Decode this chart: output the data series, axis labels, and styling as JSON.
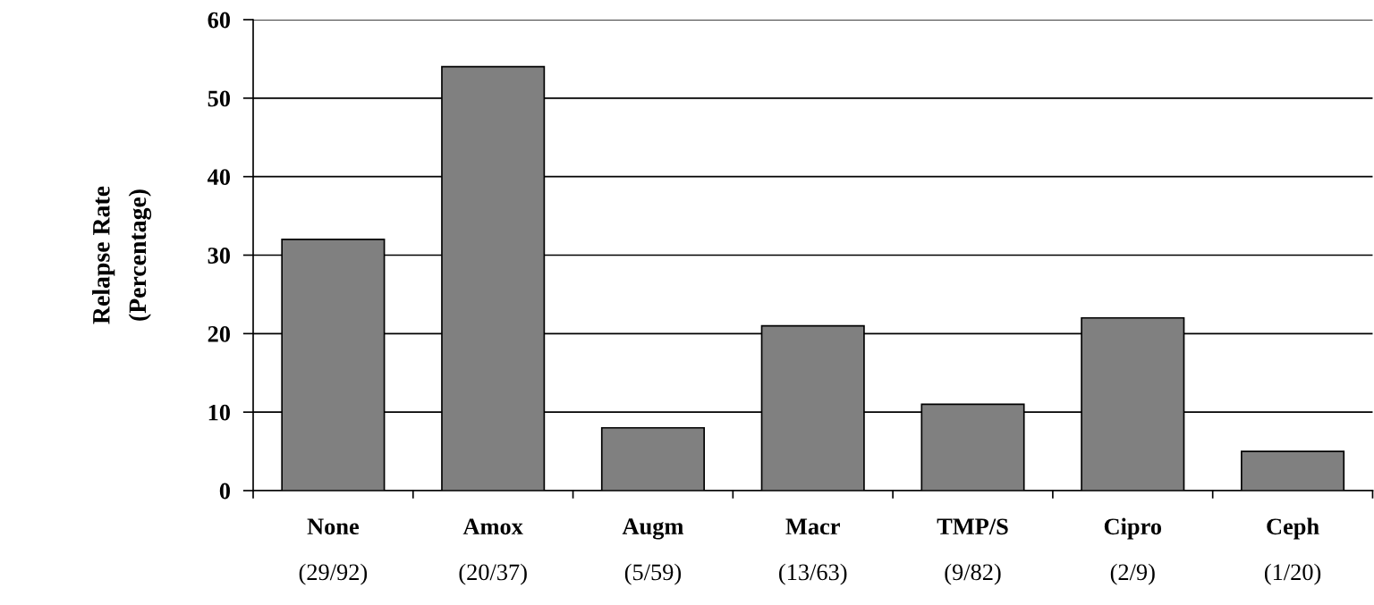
{
  "chart_data": {
    "type": "bar",
    "ylabel": "Relapse Rate\n(Percentage)",
    "categories": [
      "None\n(29/92)",
      "Amox\n(20/37)",
      "Augm\n(5/59)",
      "Macr\n(13/63)",
      "TMP/S\n(9/82)",
      "Cipro\n(2/9)",
      "Ceph\n(1/20)"
    ],
    "values": [
      32,
      54,
      8,
      21,
      11,
      22,
      5
    ],
    "color": "#808080",
    "ylim": [
      0,
      60
    ],
    "yticks": [
      0,
      10,
      20,
      30,
      40,
      50,
      60
    ],
    "grid": "y",
    "legend": false
  }
}
